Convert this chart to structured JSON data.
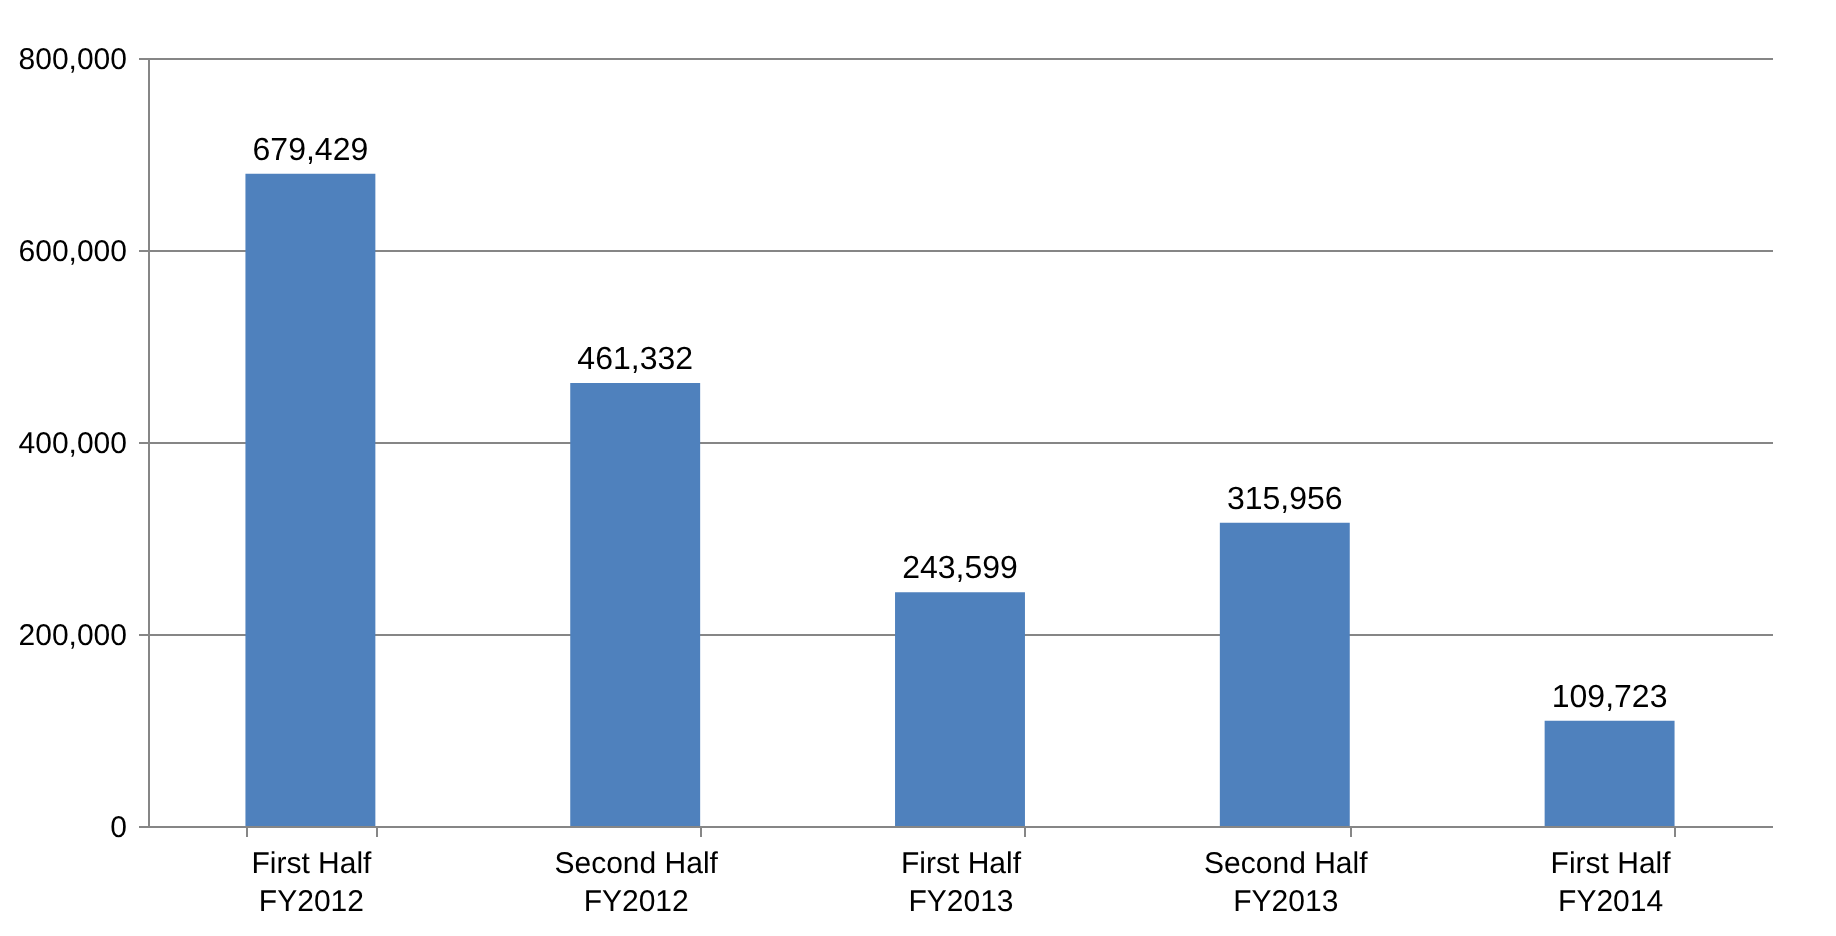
{
  "chart_data": {
    "type": "bar",
    "categories": [
      "First Half\nFY2012",
      "Second Half\nFY2012",
      "First Half\nFY2013",
      "Second Half\nFY2013",
      "First Half\nFY2014"
    ],
    "values": [
      679429,
      461332,
      243599,
      315956,
      109723
    ],
    "value_labels": [
      "679,429",
      "461,332",
      "243,599",
      "315,956",
      "109,723"
    ],
    "color": "#4f81bd",
    "ylim": [
      0,
      800000
    ],
    "yticks": [
      {
        "value": 0,
        "label": "0"
      },
      {
        "value": 200000,
        "label": "200,000"
      },
      {
        "value": 400000,
        "label": "400,000"
      },
      {
        "value": 600000,
        "label": "600,000"
      },
      {
        "value": 800000,
        "label": "800,000"
      }
    ],
    "grid": "y"
  }
}
